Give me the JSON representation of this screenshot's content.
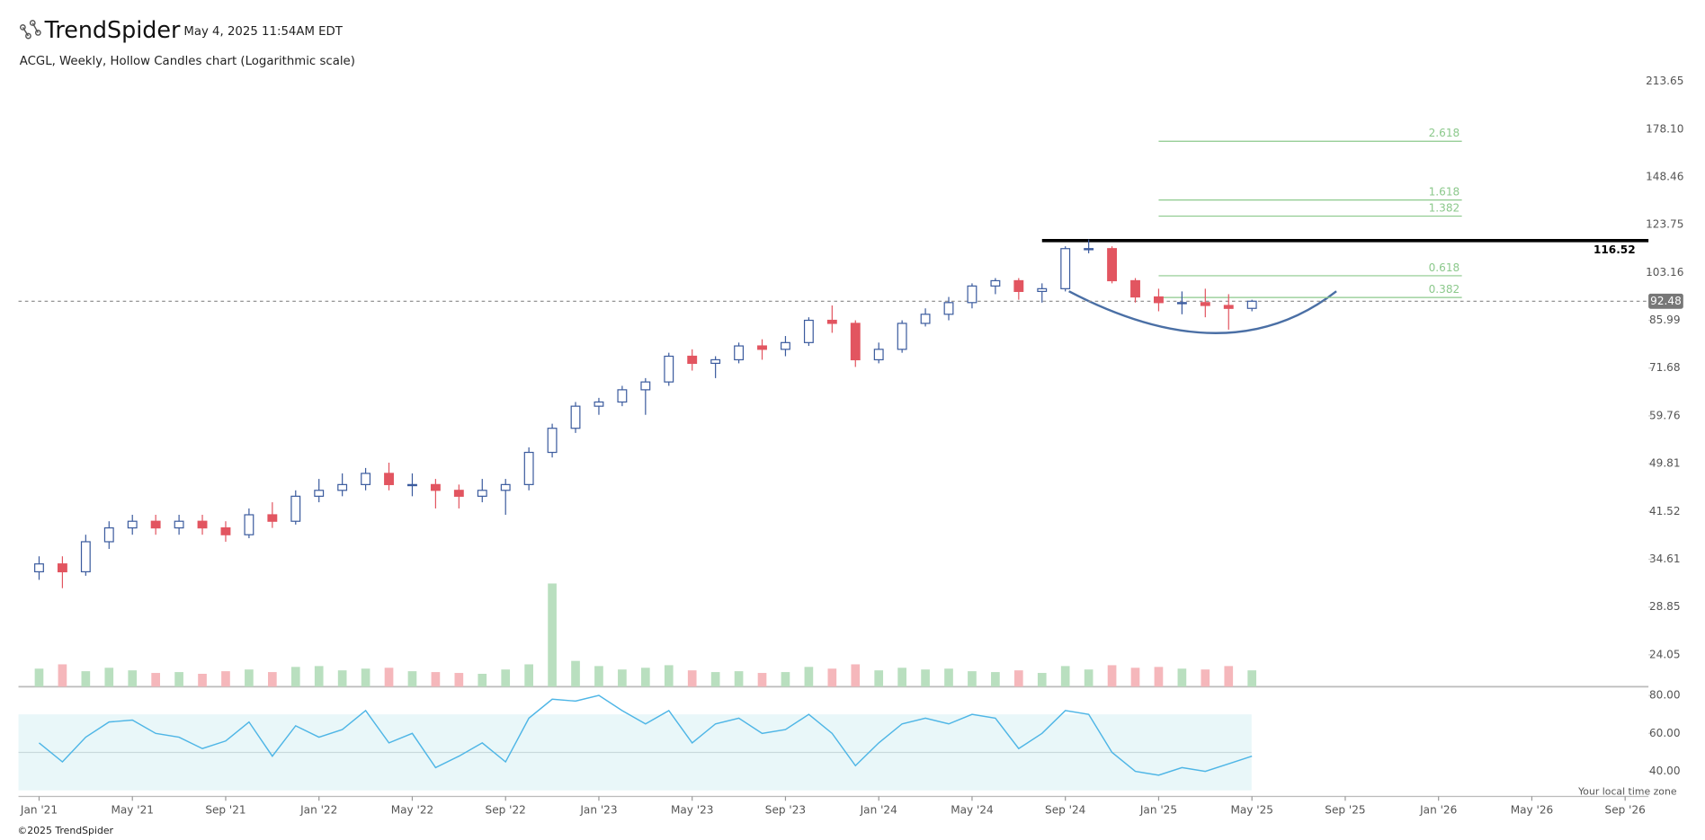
{
  "header": {
    "brand": "TrendSpider",
    "timestamp": "May 4, 2025 11:54AM EDT",
    "subtitle": "ACGL, Weekly, Hollow Candles chart (Logarithmic scale)"
  },
  "footer": {
    "timezone_note": "Your local time zone",
    "copyright": "©2025 TrendSpider"
  },
  "chart_data": {
    "type": "candlestick",
    "log_scale": true,
    "up_color": "#3b5b9e",
    "down_color": "#e25560",
    "x": [
      "2021-01",
      "2021-02",
      "2021-03",
      "2021-04",
      "2021-05",
      "2021-06",
      "2021-07",
      "2021-08",
      "2021-09",
      "2021-10",
      "2021-11",
      "2021-12",
      "2022-01",
      "2022-02",
      "2022-03",
      "2022-04",
      "2022-05",
      "2022-06",
      "2022-07",
      "2022-08",
      "2022-09",
      "2022-10",
      "2022-11",
      "2022-12",
      "2023-01",
      "2023-02",
      "2023-03",
      "2023-04",
      "2023-05",
      "2023-06",
      "2023-07",
      "2023-08",
      "2023-09",
      "2023-10",
      "2023-11",
      "2023-12",
      "2024-01",
      "2024-02",
      "2024-03",
      "2024-04",
      "2024-05",
      "2024-06",
      "2024-07",
      "2024-08",
      "2024-09",
      "2024-10",
      "2024-11",
      "2024-12",
      "2025-01",
      "2025-02",
      "2025-03",
      "2025-04",
      "2025-05"
    ],
    "candles": [
      [
        33,
        35,
        32,
        34
      ],
      [
        34,
        35,
        31,
        33
      ],
      [
        33,
        38,
        32.5,
        37
      ],
      [
        37,
        40,
        36,
        39
      ],
      [
        39,
        41,
        38,
        40
      ],
      [
        40,
        41,
        38,
        39
      ],
      [
        39,
        41,
        38,
        40
      ],
      [
        40,
        41,
        38,
        39
      ],
      [
        39,
        40,
        37,
        38
      ],
      [
        38,
        42,
        37.5,
        41
      ],
      [
        41,
        43,
        39,
        40
      ],
      [
        40,
        45,
        39.5,
        44
      ],
      [
        44,
        47,
        43,
        45
      ],
      [
        45,
        48,
        44,
        46
      ],
      [
        46,
        49,
        45,
        48
      ],
      [
        48,
        50,
        45,
        46
      ],
      [
        46,
        48,
        44,
        46
      ],
      [
        46,
        47,
        42,
        45
      ],
      [
        45,
        46,
        42,
        44
      ],
      [
        44,
        47,
        43,
        45
      ],
      [
        45,
        47,
        41,
        46
      ],
      [
        46,
        53,
        45,
        52
      ],
      [
        52,
        58,
        51,
        57
      ],
      [
        57,
        63,
        56,
        62
      ],
      [
        62,
        64,
        60,
        63
      ],
      [
        63,
        67,
        62,
        66
      ],
      [
        66,
        69,
        60,
        68
      ],
      [
        68,
        76,
        67,
        75
      ],
      [
        75,
        77,
        71,
        73
      ],
      [
        73,
        75,
        69,
        74
      ],
      [
        74,
        79,
        73,
        78
      ],
      [
        78,
        80,
        74,
        77
      ],
      [
        77,
        81,
        75,
        79
      ],
      [
        79,
        87,
        78,
        86
      ],
      [
        86,
        91,
        82,
        85
      ],
      [
        85,
        86,
        72,
        74
      ],
      [
        74,
        79,
        73,
        77
      ],
      [
        77,
        86,
        76,
        85
      ],
      [
        85,
        90,
        84,
        88
      ],
      [
        88,
        94,
        86,
        92
      ],
      [
        92,
        99,
        90,
        98
      ],
      [
        98,
        101,
        95,
        100
      ],
      [
        100,
        101,
        93,
        96
      ],
      [
        96,
        99,
        92,
        97
      ],
      [
        97,
        114,
        96,
        113
      ],
      [
        113,
        117,
        111,
        113
      ],
      [
        113,
        114,
        99,
        100
      ],
      [
        100,
        101,
        92,
        94
      ],
      [
        94,
        97,
        89,
        92
      ],
      [
        92,
        96,
        88,
        92
      ],
      [
        92,
        97,
        87,
        91
      ],
      [
        91,
        95,
        83,
        90
      ],
      [
        90,
        93,
        89,
        92.48
      ]
    ],
    "volume": [
      2.1,
      2.6,
      1.8,
      2.2,
      1.9,
      1.6,
      1.7,
      1.5,
      1.8,
      2.0,
      1.7,
      2.3,
      2.4,
      1.9,
      2.1,
      2.2,
      1.8,
      1.7,
      1.6,
      1.5,
      2.0,
      2.6,
      12,
      3.0,
      2.4,
      2.0,
      2.2,
      2.5,
      1.9,
      1.7,
      1.8,
      1.6,
      1.7,
      2.3,
      2.1,
      2.6,
      1.9,
      2.2,
      2.0,
      2.1,
      1.8,
      1.7,
      1.9,
      1.6,
      2.4,
      2.0,
      2.5,
      2.2,
      2.3,
      2.1,
      2.0,
      2.4,
      1.9
    ],
    "volume_up_color": "#b9dfbf",
    "volume_down_color": "#f5b7bb",
    "xlim": [
      "2020-12",
      "2026-10"
    ],
    "xticks": [
      {
        "value": "2021-01",
        "label": "Jan '21"
      },
      {
        "value": "2021-05",
        "label": "May '21"
      },
      {
        "value": "2021-09",
        "label": "Sep '21"
      },
      {
        "value": "2022-01",
        "label": "Jan '22"
      },
      {
        "value": "2022-05",
        "label": "May '22"
      },
      {
        "value": "2022-09",
        "label": "Sep '22"
      },
      {
        "value": "2023-01",
        "label": "Jan '23"
      },
      {
        "value": "2023-05",
        "label": "May '23"
      },
      {
        "value": "2023-09",
        "label": "Sep '23"
      },
      {
        "value": "2024-01",
        "label": "Jan '24"
      },
      {
        "value": "2024-05",
        "label": "May '24"
      },
      {
        "value": "2024-09",
        "label": "Sep '24"
      },
      {
        "value": "2025-01",
        "label": "Jan '25"
      },
      {
        "value": "2025-05",
        "label": "May '25"
      },
      {
        "value": "2025-09",
        "label": "Sep '25"
      },
      {
        "value": "2026-01",
        "label": "Jan '26"
      },
      {
        "value": "2026-05",
        "label": "May '26"
      },
      {
        "value": "2026-09",
        "label": "Sep '26"
      }
    ],
    "ylim": [
      21.3,
      222.5
    ],
    "yticks": [
      213.65,
      {
        "value": 178.1,
        "label": "178.10"
      },
      148.46,
      123.75,
      103.16,
      85.99,
      71.68,
      59.76,
      49.81,
      41.52,
      34.61,
      28.85,
      24.05
    ],
    "last_price": 92.48,
    "resistance": {
      "value": 116.52,
      "start": "2024-08"
    },
    "fib_color": "#8cc98c",
    "fib_start": "2025-01",
    "fib_end": "2026-02",
    "fib_levels": [
      {
        "level": 2.618,
        "price": 170.1
      },
      {
        "level": 1.618,
        "price": 136.0
      },
      {
        "level": 1.382,
        "price": 127.9
      },
      {
        "level": 0.618,
        "price": 101.9
      },
      {
        "level": 0.382,
        "price": 93.8
      }
    ],
    "rsi": {
      "color": "#4fb6e6",
      "ylim": [
        27.4,
        84
      ],
      "yticks": [
        {
          "value": 80,
          "label": "80.00"
        },
        {
          "value": 60,
          "label": "60.00"
        },
        {
          "value": 40,
          "label": "40.00"
        }
      ],
      "band": [
        30,
        70
      ],
      "mid": 50,
      "values": [
        55,
        45,
        58,
        66,
        67,
        60,
        58,
        52,
        56,
        66,
        48,
        64,
        58,
        62,
        72,
        55,
        60,
        42,
        48,
        55,
        45,
        68,
        78,
        77,
        80,
        72,
        65,
        72,
        55,
        65,
        68,
        60,
        62,
        70,
        60,
        43,
        55,
        65,
        68,
        65,
        70,
        68,
        52,
        60,
        72,
        70,
        50,
        40,
        38,
        42,
        40,
        44,
        48
      ]
    }
  }
}
